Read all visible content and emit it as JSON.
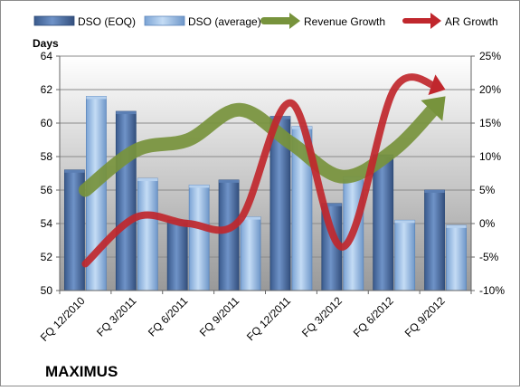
{
  "chart_data": {
    "type": "bar",
    "title": "",
    "company": "MAXIMUS",
    "y_left_label": "Days",
    "ylim_left": [
      50,
      64
    ],
    "left_ticks": [
      "50",
      "52",
      "54",
      "56",
      "58",
      "60",
      "62",
      "64"
    ],
    "ylim_right": [
      -10,
      25
    ],
    "right_ticks": [
      "-10%",
      "-5%",
      "0%",
      "5%",
      "10%",
      "15%",
      "20%",
      "25%"
    ],
    "categories": [
      "FQ 12/2010",
      "FQ 3/2011",
      "FQ 6/2011",
      "FQ 9/2011",
      "FQ 12/2011",
      "FQ 3/2012",
      "FQ 6/2012",
      "FQ 9/2012"
    ],
    "grid": true,
    "legend_position": "top",
    "bar_series": [
      {
        "name": "DSO (EOQ)",
        "color": "#4a6fa5",
        "values": [
          57.2,
          60.7,
          54.2,
          56.6,
          60.4,
          55.2,
          58.1,
          56.0
        ]
      },
      {
        "name": "DSO (average)",
        "color": "#8fb4e0",
        "values": [
          61.6,
          56.7,
          56.3,
          54.4,
          59.8,
          56.8,
          54.2,
          53.9
        ]
      }
    ],
    "line_series": [
      {
        "name": "Revenue Growth",
        "color": "#77933c",
        "axis": "right",
        "values": [
          5.0,
          11.0,
          12.5,
          17.0,
          12.0,
          7.0,
          11.0,
          19.0
        ]
      },
      {
        "name": "AR Growth",
        "color": "#c0272d",
        "axis": "right",
        "values": [
          -6.0,
          1.0,
          0.0,
          0.5,
          18.0,
          -3.5,
          20.0,
          20.0
        ]
      }
    ]
  }
}
